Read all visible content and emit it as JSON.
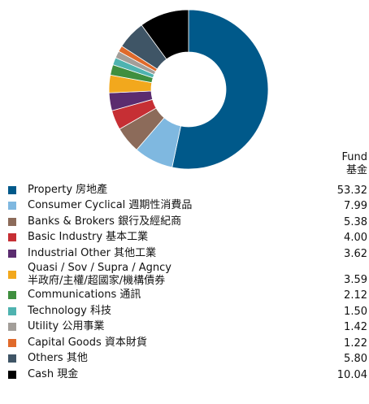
{
  "chart_data": {
    "type": "donut",
    "column_header": "Fund\n基金",
    "categories": [
      "Property 房地產",
      "Consumer Cyclical 週期性消費品",
      "Banks & Brokers 銀行及經紀商",
      "Basic Industry 基本工業",
      "Industrial Other 其他工業",
      "Quasi / Sov / Supra / Agncy\n半政府/主權/超國家/機構債券",
      "Communications 通訊",
      "Technology 科技",
      "Utility 公用事業",
      "Capital Goods 資本財貨",
      "Others 其他",
      "Cash 現金"
    ],
    "values": [
      53.32,
      7.99,
      5.38,
      4.0,
      3.62,
      3.59,
      2.12,
      1.5,
      1.42,
      1.22,
      5.8,
      10.04
    ],
    "value_labels": [
      "53.32",
      "7.99",
      "5.38",
      "4.00",
      "3.62",
      "3.59",
      "2.12",
      "1.50",
      "1.42",
      "1.22",
      "5.80",
      "10.04"
    ],
    "colors": [
      "#00598a",
      "#7fb8e0",
      "#8c6b5a",
      "#c62f34",
      "#5b2c6f",
      "#f2a81d",
      "#3f8f3f",
      "#4fb3b0",
      "#a39e99",
      "#e06a2b",
      "#3f5566",
      "#000000"
    ]
  }
}
